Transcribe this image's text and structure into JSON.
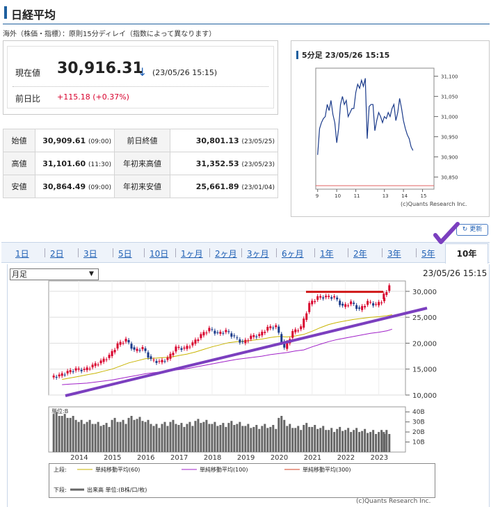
{
  "page_title": "日経平均",
  "delay_note": "海外（株価・指標）：原則15分ディレイ（指数によって異なります）",
  "quote": {
    "price_label": "現在値",
    "price": "30,916.31",
    "direction_arrow": "↓",
    "price_time": "(23/05/26 15:15)",
    "change_label": "前日比",
    "change": "+115.18 (+0.37%)"
  },
  "stats": [
    {
      "label": "始値",
      "value": "30,909.61",
      "note": "(09:00)",
      "label2": "前日終値",
      "value2": "30,801.13",
      "note2": "(23/05/25)"
    },
    {
      "label": "高値",
      "value": "31,101.60",
      "note": "(11:30)",
      "label2": "年初来高値",
      "value2": "31,352.53",
      "note2": "(23/05/23)"
    },
    {
      "label": "安値",
      "value": "30,864.49",
      "note": "(09:00)",
      "label2": "年初来安値",
      "value2": "25,661.89",
      "note2": "(23/01/04)"
    }
  ],
  "colors": {
    "accent": "#1e5f9e",
    "link": "#1e5fb4",
    "up": "#d8002c",
    "down": "#1a3a8a",
    "annotation": "#7b3fbf"
  },
  "refresh_label": "更新",
  "tabs": [
    "1日",
    "2日",
    "3日",
    "5日",
    "10日",
    "1ヶ月",
    "2ヶ月",
    "3ヶ月",
    "6ヶ月",
    "1年",
    "2年",
    "3年",
    "5年",
    "10年"
  ],
  "active_tab": "10年",
  "period_select": "月足",
  "chart_time": "23/05/26 15:15",
  "chart_data": [
    {
      "type": "line",
      "title": "5分足 23/05/26 15:15",
      "x_ticks": [
        "9",
        "10",
        "11",
        "13",
        "14",
        "15"
      ],
      "y_ticks": [
        "31,100",
        "31,050",
        "31,000",
        "30,950",
        "30,900",
        "30,850"
      ],
      "ylim": [
        30820,
        31120
      ],
      "x": [
        9.0,
        9.1,
        9.2,
        9.3,
        9.4,
        9.5,
        9.6,
        9.7,
        9.8,
        9.9,
        10.0,
        10.1,
        10.2,
        10.3,
        10.4,
        10.5,
        10.6,
        10.7,
        10.8,
        10.9,
        11.0,
        11.1,
        11.2,
        11.3,
        11.4,
        11.5,
        12.5,
        12.6,
        12.7,
        12.8,
        12.9,
        13.0,
        13.1,
        13.2,
        13.3,
        13.4,
        13.5,
        13.6,
        13.7,
        13.8,
        13.9,
        14.0,
        14.1,
        14.2,
        14.3,
        14.4,
        14.5,
        14.6,
        14.7,
        14.8,
        14.9,
        15.0
      ],
      "values": [
        30905,
        30970,
        30985,
        30995,
        31000,
        31030,
        31015,
        31040,
        31005,
        30985,
        30935,
        30970,
        31030,
        31050,
        31030,
        31040,
        31000,
        31010,
        31020,
        31020,
        31060,
        31080,
        31070,
        31090,
        31075,
        31095,
        31090,
        30945,
        31025,
        31030,
        31030,
        30965,
        30990,
        31010,
        31000,
        30985,
        31000,
        30995,
        31010,
        31000,
        31020,
        31030,
        30990,
        31010,
        31045,
        31020,
        30990,
        30970,
        30955,
        30945,
        30925,
        30916
      ],
      "credit": "(c)Quants Research Inc."
    },
    {
      "type": "candlestick",
      "title": "",
      "x_ticks": [
        "2014",
        "2015",
        "2016",
        "2017",
        "2018",
        "2019",
        "2020",
        "2021",
        "2022",
        "2023"
      ],
      "y_ticks": [
        "30,000",
        "25,000",
        "20,000",
        "15,000",
        "10,000"
      ],
      "ylim": [
        10000,
        32000
      ],
      "x": [
        2013.5,
        2013.75,
        2014.0,
        2014.25,
        2014.5,
        2014.75,
        2015.0,
        2015.25,
        2015.5,
        2015.75,
        2016.0,
        2016.25,
        2016.5,
        2016.75,
        2017.0,
        2017.25,
        2017.5,
        2017.75,
        2018.0,
        2018.25,
        2018.5,
        2018.75,
        2019.0,
        2019.25,
        2019.5,
        2019.75,
        2020.0,
        2020.25,
        2020.5,
        2020.75,
        2021.0,
        2021.25,
        2021.5,
        2021.75,
        2022.0,
        2022.25,
        2022.5,
        2022.75,
        2023.0,
        2023.25,
        2023.4
      ],
      "close": [
        13700,
        14400,
        14900,
        14800,
        15600,
        16400,
        17500,
        19700,
        20600,
        18500,
        19000,
        16700,
        16300,
        17000,
        19100,
        18900,
        19900,
        21500,
        22700,
        21800,
        22300,
        21100,
        20000,
        21200,
        21500,
        22900,
        23200,
        18900,
        22100,
        23000,
        27500,
        28800,
        28900,
        28800,
        27000,
        27800,
        26400,
        27900,
        27300,
        28500,
        30900
      ],
      "ma60": [
        13000,
        13300,
        13600,
        13900,
        14200,
        14600,
        15000,
        15600,
        16200,
        16600,
        17000,
        17100,
        17200,
        17300,
        17600,
        17900,
        18300,
        18800,
        19300,
        19700,
        20100,
        20300,
        20400,
        20600,
        20800,
        21100,
        21300,
        21200,
        21400,
        21700,
        22300,
        23000,
        23600,
        24000,
        24300,
        24600,
        24800,
        25000,
        25100,
        25300,
        25500
      ],
      "ma100": [
        12000,
        12100,
        12200,
        12300,
        12500,
        12700,
        12900,
        13200,
        13500,
        13800,
        14100,
        14300,
        14500,
        14700,
        14900,
        15100,
        15400,
        15700,
        16000,
        16300,
        16600,
        16900,
        17100,
        17300,
        17500,
        17800,
        18000,
        18200,
        18500,
        18700,
        19300,
        19800,
        20300,
        20700,
        21000,
        21300,
        21600,
        21900,
        22100,
        22400,
        22700
      ],
      "ma300": [],
      "volume_label": "単位:B",
      "volume_ticks": [
        "40B",
        "30B",
        "20B",
        "10B"
      ],
      "volume": [
        38,
        36,
        34,
        30,
        30,
        28,
        27,
        32,
        30,
        34,
        33,
        30,
        26,
        28,
        30,
        27,
        28,
        31,
        30,
        28,
        27,
        29,
        28,
        26,
        25,
        26,
        25,
        34,
        26,
        24,
        27,
        25,
        24,
        22,
        23,
        22,
        22,
        21,
        20,
        20,
        20
      ],
      "annotations": [
        "resistance-line",
        "support-trendline",
        "checkmark"
      ],
      "legend": {
        "upper_label": "上段:",
        "lower_label": "下段:",
        "items": [
          "単純移動平均(60)",
          "単純移動平均(100)",
          "単純移動平均(300)"
        ],
        "item_colors": [
          "#c8b400",
          "#a020c8",
          "#d04020"
        ],
        "volume_item": "出来高 単位:(B株/口/枚)"
      },
      "credit": "(c)Quants Research Inc."
    }
  ]
}
